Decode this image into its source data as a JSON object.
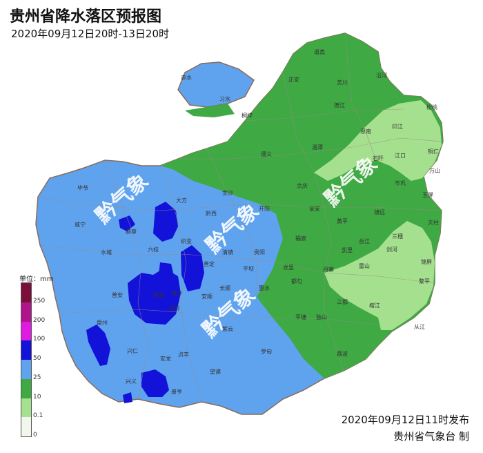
{
  "title": "贵州省降水落区预报图",
  "subtitle": "2020年09月12日20时-13日20时",
  "legend": {
    "unit_label": "单位：mm",
    "classes": [
      {
        "label": "250",
        "color": "#7a0f3a"
      },
      {
        "label": "200",
        "color": "#b0148a"
      },
      {
        "label": "100",
        "color": "#e11ae3"
      },
      {
        "label": "50",
        "color": "#1212d8"
      },
      {
        "label": "25",
        "color": "#5fa3ef"
      },
      {
        "label": "10",
        "color": "#3fa944"
      },
      {
        "label": "0.1",
        "color": "#a5e08f"
      },
      {
        "label": "0",
        "color": "#f3f6ec"
      }
    ]
  },
  "watermark": "黔气象",
  "cities": [
    {
      "name": "道真"
    },
    {
      "name": "正安"
    },
    {
      "name": "务川"
    },
    {
      "name": "赤水"
    },
    {
      "name": "习水"
    },
    {
      "name": "桐梓"
    },
    {
      "name": "德江"
    },
    {
      "name": "沿河"
    },
    {
      "name": "松桃"
    },
    {
      "name": "印江"
    },
    {
      "name": "思南"
    },
    {
      "name": "江口"
    },
    {
      "name": "铜仁"
    },
    {
      "name": "遵义"
    },
    {
      "name": "湄潭"
    },
    {
      "name": "石阡"
    },
    {
      "name": "万山"
    },
    {
      "name": "毕节"
    },
    {
      "name": "大方"
    },
    {
      "name": "黔西"
    },
    {
      "name": "金沙"
    },
    {
      "name": "余庆"
    },
    {
      "name": "岑巩"
    },
    {
      "name": "玉屏"
    },
    {
      "name": "威宁"
    },
    {
      "name": "赫章"
    },
    {
      "name": "织金"
    },
    {
      "name": "清镇"
    },
    {
      "name": "贵阳"
    },
    {
      "name": "开阳"
    },
    {
      "name": "瓮安"
    },
    {
      "name": "黄平"
    },
    {
      "name": "镇远"
    },
    {
      "name": "三穗"
    },
    {
      "name": "天柱"
    },
    {
      "name": "水城"
    },
    {
      "name": "六枝"
    },
    {
      "name": "普定"
    },
    {
      "name": "平坝"
    },
    {
      "name": "龙里"
    },
    {
      "name": "福泉"
    },
    {
      "name": "凯里"
    },
    {
      "name": "台江"
    },
    {
      "name": "剑河"
    },
    {
      "name": "锦屏"
    },
    {
      "name": "盘州"
    },
    {
      "name": "镇宁"
    },
    {
      "name": "关岭"
    },
    {
      "name": "安顺"
    },
    {
      "name": "长顺"
    },
    {
      "name": "惠水"
    },
    {
      "name": "都匀"
    },
    {
      "name": "丹寨"
    },
    {
      "name": "雷山"
    },
    {
      "name": "黎平"
    },
    {
      "name": "晴隆"
    },
    {
      "name": "普安"
    },
    {
      "name": "紫云"
    },
    {
      "name": "罗甸"
    },
    {
      "name": "平塘"
    },
    {
      "name": "独山"
    },
    {
      "name": "三都"
    },
    {
      "name": "榕江"
    },
    {
      "name": "从江"
    },
    {
      "name": "兴仁"
    },
    {
      "name": "贞丰"
    },
    {
      "name": "望谟"
    },
    {
      "name": "兴义"
    },
    {
      "name": "安龙"
    },
    {
      "name": "册亨"
    },
    {
      "name": "荔波"
    }
  ],
  "issue_text": "2020年09月12日11时发布",
  "agency_text": "贵州省气象台  制"
}
